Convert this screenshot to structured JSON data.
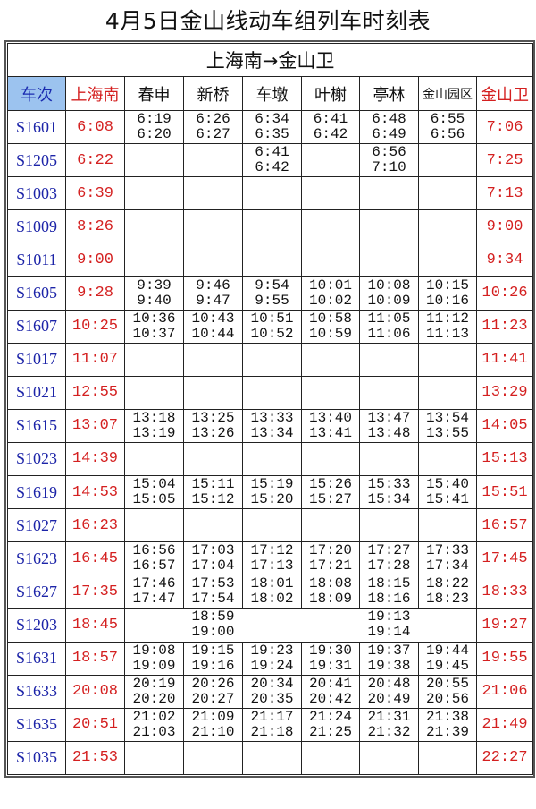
{
  "title": "4月5日金山线动车组列车时刻表",
  "route": "上海南→金山卫",
  "headers": [
    "车次",
    "上海南",
    "春申",
    "新桥",
    "车墩",
    "叶榭",
    "亭林",
    "金山园区",
    "金山卫"
  ],
  "colors": {
    "train_number": "#1c24a8",
    "terminal_time": "#d42020",
    "header_highlight": "#9cc3ef"
  },
  "rows": [
    {
      "train": "S1601",
      "origin": "6:08",
      "stops": [
        [
          "6:19",
          "6:20"
        ],
        [
          "6:26",
          "6:27"
        ],
        [
          "6:34",
          "6:35"
        ],
        [
          "6:41",
          "6:42"
        ],
        [
          "6:48",
          "6:49"
        ],
        [
          "6:55",
          "6:56"
        ]
      ],
      "dest": "7:06"
    },
    {
      "train": "S1205",
      "origin": "6:22",
      "stops": [
        null,
        null,
        [
          "6:41",
          "6:42"
        ],
        null,
        [
          "6:56",
          "7:10"
        ],
        null
      ],
      "dest": "7:25"
    },
    {
      "train": "S1003",
      "origin": "6:39",
      "stops": [
        null,
        null,
        null,
        null,
        null,
        null
      ],
      "dest": "7:13"
    },
    {
      "train": "S1009",
      "origin": "8:26",
      "stops": [
        null,
        null,
        null,
        null,
        null,
        null
      ],
      "dest": "9:00"
    },
    {
      "train": "S1011",
      "origin": "9:00",
      "stops": [
        null,
        null,
        null,
        null,
        null,
        null
      ],
      "dest": "9:34"
    },
    {
      "train": "S1605",
      "origin": "9:28",
      "stops": [
        [
          "9:39",
          "9:40"
        ],
        [
          "9:46",
          "9:47"
        ],
        [
          "9:54",
          "9:55"
        ],
        [
          "10:01",
          "10:02"
        ],
        [
          "10:08",
          "10:09"
        ],
        [
          "10:15",
          "10:16"
        ]
      ],
      "dest": "10:26"
    },
    {
      "train": "S1607",
      "origin": "10:25",
      "stops": [
        [
          "10:36",
          "10:37"
        ],
        [
          "10:43",
          "10:44"
        ],
        [
          "10:51",
          "10:52"
        ],
        [
          "10:58",
          "10:59"
        ],
        [
          "11:05",
          "11:06"
        ],
        [
          "11:12",
          "11:13"
        ]
      ],
      "dest": "11:23"
    },
    {
      "train": "S1017",
      "origin": "11:07",
      "stops": [
        null,
        null,
        null,
        null,
        null,
        null
      ],
      "dest": "11:41"
    },
    {
      "train": "S1021",
      "origin": "12:55",
      "stops": [
        null,
        null,
        null,
        null,
        null,
        null
      ],
      "dest": "13:29"
    },
    {
      "train": "S1615",
      "origin": "13:07",
      "stops": [
        [
          "13:18",
          "13:19"
        ],
        [
          "13:25",
          "13:26"
        ],
        [
          "13:33",
          "13:34"
        ],
        [
          "13:40",
          "13:41"
        ],
        [
          "13:47",
          "13:48"
        ],
        [
          "13:54",
          "13:55"
        ]
      ],
      "dest": "14:05"
    },
    {
      "train": "S1023",
      "origin": "14:39",
      "stops": [
        null,
        null,
        null,
        null,
        null,
        null
      ],
      "dest": "15:13"
    },
    {
      "train": "S1619",
      "origin": "14:53",
      "stops": [
        [
          "15:04",
          "15:05"
        ],
        [
          "15:11",
          "15:12"
        ],
        [
          "15:19",
          "15:20"
        ],
        [
          "15:26",
          "15:27"
        ],
        [
          "15:33",
          "15:34"
        ],
        [
          "15:40",
          "15:41"
        ]
      ],
      "dest": "15:51"
    },
    {
      "train": "S1027",
      "origin": "16:23",
      "stops": [
        null,
        null,
        null,
        null,
        null,
        null
      ],
      "dest": "16:57"
    },
    {
      "train": "S1623",
      "origin": "16:45",
      "stops": [
        [
          "16:56",
          "16:57"
        ],
        [
          "17:03",
          "17:04"
        ],
        [
          "17:12",
          "17:13"
        ],
        [
          "17:20",
          "17:21"
        ],
        [
          "17:27",
          "17:28"
        ],
        [
          "17:33",
          "17:34"
        ]
      ],
      "dest": "17:45"
    },
    {
      "train": "S1627",
      "origin": "17:35",
      "stops": [
        [
          "17:46",
          "17:47"
        ],
        [
          "17:53",
          "17:54"
        ],
        [
          "18:01",
          "18:02"
        ],
        [
          "18:08",
          "18:09"
        ],
        [
          "18:15",
          "18:16"
        ],
        [
          "18:22",
          "18:23"
        ]
      ],
      "dest": "18:33"
    },
    {
      "train": "S1203",
      "origin": "18:45",
      "stops": [
        null,
        [
          "18:59",
          "19:00"
        ],
        null,
        null,
        [
          "19:13",
          "19:14"
        ],
        null
      ],
      "dest": "19:27"
    },
    {
      "train": "S1631",
      "origin": "18:57",
      "stops": [
        [
          "19:08",
          "19:09"
        ],
        [
          "19:15",
          "19:16"
        ],
        [
          "19:23",
          "19:24"
        ],
        [
          "19:30",
          "19:31"
        ],
        [
          "19:37",
          "19:38"
        ],
        [
          "19:44",
          "19:45"
        ]
      ],
      "dest": "19:55"
    },
    {
      "train": "S1633",
      "origin": "20:08",
      "stops": [
        [
          "20:19",
          "20:20"
        ],
        [
          "20:26",
          "20:27"
        ],
        [
          "20:34",
          "20:35"
        ],
        [
          "20:41",
          "20:42"
        ],
        [
          "20:48",
          "20:49"
        ],
        [
          "20:55",
          "20:56"
        ]
      ],
      "dest": "21:06"
    },
    {
      "train": "S1635",
      "origin": "20:51",
      "stops": [
        [
          "21:02",
          "21:03"
        ],
        [
          "21:09",
          "21:10"
        ],
        [
          "21:17",
          "21:18"
        ],
        [
          "21:24",
          "21:25"
        ],
        [
          "21:31",
          "21:32"
        ],
        [
          "21:38",
          "21:39"
        ]
      ],
      "dest": "21:49"
    },
    {
      "train": "S1035",
      "origin": "21:53",
      "stops": [
        null,
        null,
        null,
        null,
        null,
        null
      ],
      "dest": "22:27"
    }
  ]
}
